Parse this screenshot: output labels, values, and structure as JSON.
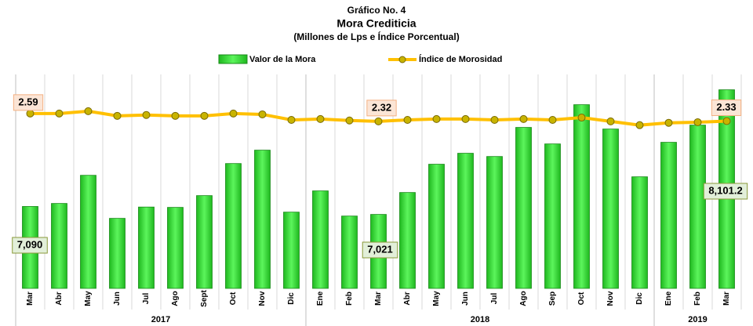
{
  "chart_data": {
    "type": "bar_line",
    "title": "Gráfico No. 4",
    "subtitle": "Mora Crediticia",
    "subtitle2": "(Millones de Lps e Índice Porcentual)",
    "categories": [
      "Mar",
      "Abr",
      "May",
      "Jun",
      "Jul",
      "Ago",
      "Sept",
      "Oct",
      "Nov",
      "Dic",
      "Ene",
      "Feb",
      "Mar",
      "Abr",
      "May",
      "Jun",
      "Jul",
      "Ago",
      "Sep",
      "Oct",
      "Nov",
      "Dic",
      "Ene",
      "Feb",
      "Mar"
    ],
    "groups": [
      {
        "name": "2017",
        "count": 10
      },
      {
        "name": "2018",
        "count": 12
      },
      {
        "name": "2019",
        "count": 3
      }
    ],
    "series": [
      {
        "name": "Valor de la Mora",
        "color": "#3ee23e",
        "type": "bar",
        "values": [
          7090,
          7116,
          7360,
          6987,
          7085,
          7082,
          7184,
          7462,
          7578,
          7041,
          7225,
          7007,
          7021,
          7211,
          7456,
          7551,
          7523,
          7775,
          7632,
          7972,
          7761,
          7347,
          7646,
          7795,
          8101.2
        ],
        "value_labels": [
          "7,090",
          null,
          null,
          null,
          null,
          null,
          null,
          null,
          null,
          null,
          null,
          null,
          "7,021",
          null,
          null,
          null,
          null,
          null,
          null,
          null,
          null,
          null,
          null,
          null,
          "8,101.2"
        ]
      },
      {
        "name": "Índice de Morosidad",
        "color": "#ffc000",
        "type": "line",
        "axis": "y2",
        "values": [
          2.59,
          2.59,
          2.67,
          2.51,
          2.54,
          2.51,
          2.51,
          2.59,
          2.56,
          2.37,
          2.4,
          2.35,
          2.32,
          2.37,
          2.4,
          2.4,
          2.37,
          2.4,
          2.37,
          2.45,
          2.32,
          2.19,
          2.27,
          2.29,
          2.33
        ],
        "value_labels": [
          "2.59",
          null,
          null,
          null,
          null,
          null,
          null,
          null,
          null,
          null,
          null,
          null,
          "2.32",
          null,
          null,
          null,
          null,
          null,
          null,
          null,
          null,
          null,
          null,
          null,
          "2.33"
        ]
      }
    ],
    "ylim": [
      6380,
      8200
    ],
    "y2lim": [
      -3.43,
      3.8
    ]
  }
}
